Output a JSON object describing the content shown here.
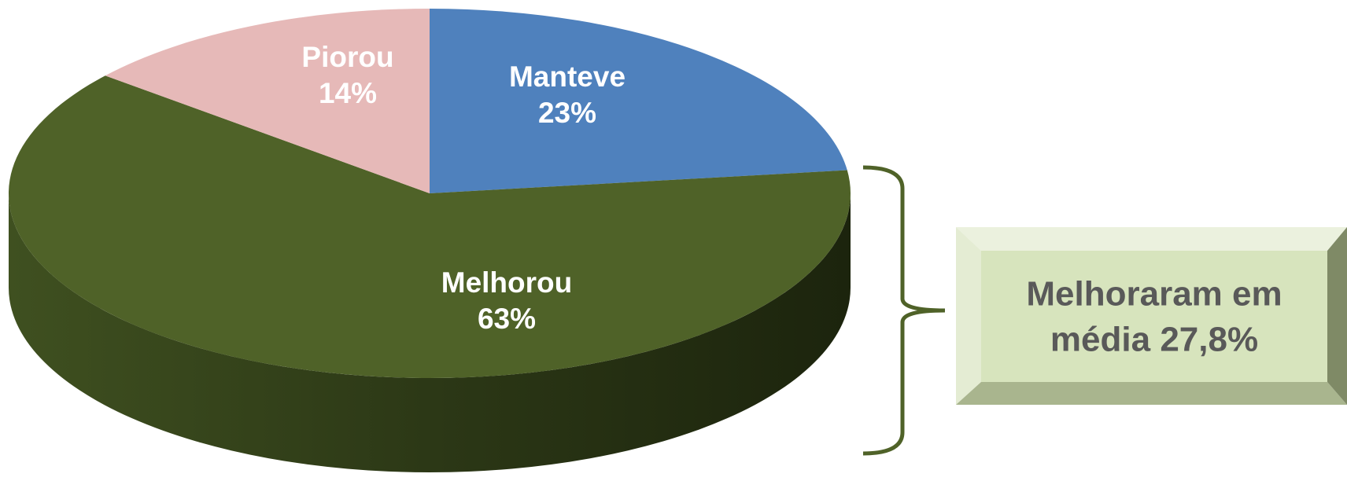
{
  "chart_data": {
    "type": "pie",
    "categories": [
      "Melhorou",
      "Manteve",
      "Piorou"
    ],
    "values": [
      63,
      23,
      14
    ],
    "value_labels": [
      "63%",
      "23%",
      "14%"
    ],
    "colors": [
      "#4f6228",
      "#4f81bd",
      "#e6b9b8"
    ],
    "annotation": [
      "Melhoraram em",
      "média 27,8%"
    ]
  }
}
